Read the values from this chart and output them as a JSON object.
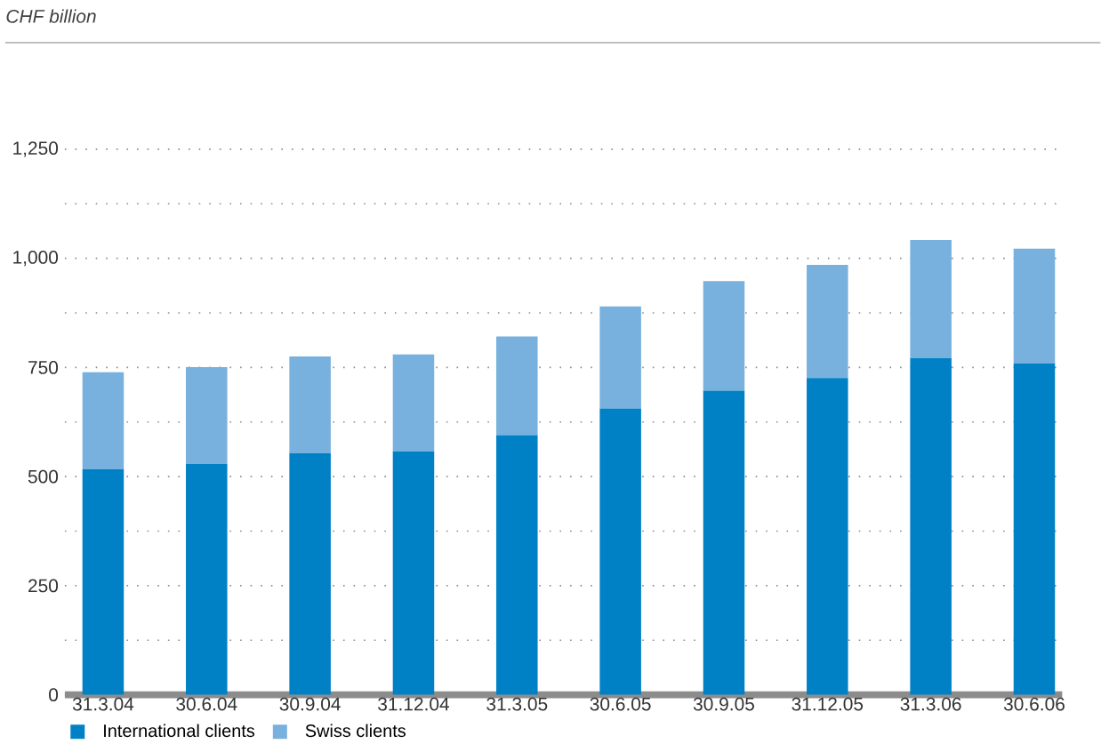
{
  "chart_data": {
    "type": "bar",
    "title": "CHF billion",
    "stacked": true,
    "categories": [
      "31.3.04",
      "30.6.04",
      "30.9.04",
      "31.12.04",
      "31.3.05",
      "30.6.05",
      "30.9.05",
      "31.12.05",
      "31.3.06",
      "30.6.06"
    ],
    "series": [
      {
        "name": "International clients",
        "color": "#0081c6",
        "values": [
          517,
          529,
          554,
          558,
          595,
          656,
          697,
          726,
          771,
          759
        ]
      },
      {
        "name": "Swiss clients",
        "color": "#78b1de",
        "values": [
          222,
          222,
          221,
          222,
          226,
          234,
          251,
          259,
          271,
          263
        ]
      }
    ],
    "ylim": [
      0,
      1250
    ],
    "yticks": [
      0,
      {
        "value": 125,
        "label": null
      },
      250,
      {
        "value": 375,
        "label": null
      },
      500,
      {
        "value": 625,
        "label": null
      },
      750,
      {
        "value": 875,
        "label": null
      },
      {
        "value": 1000,
        "label": "1,000"
      },
      {
        "value": 1125,
        "label": null
      },
      {
        "value": 1250,
        "label": "1,250"
      }
    ],
    "grid": "y",
    "legend": "bottom"
  }
}
